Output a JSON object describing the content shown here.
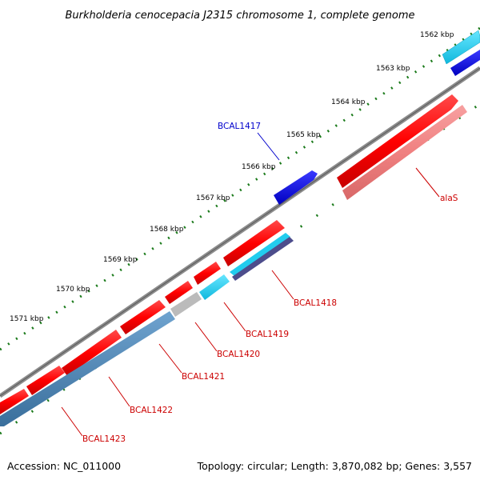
{
  "title": "Burkholderia cenocepacia J2315 chromosome 1, complete genome",
  "footer": {
    "accession": "Accession: NC_011000",
    "stats": "Topology: circular; Length: 3,870,082 bp; Genes: 3,557"
  },
  "ticks": [
    "1562 kbp",
    "1563 kbp",
    "1564 kbp",
    "1565 kbp",
    "1566 kbp",
    "1567 kbp",
    "1568 kbp",
    "1569 kbp",
    "1570 kbp",
    "1571 kbp"
  ],
  "genes": {
    "bcal1417": "BCAL1417",
    "alas": "alaS",
    "bcal1418": "BCAL1418",
    "bcal1419": "BCAL1419",
    "bcal1420": "BCAL1420",
    "bcal1421": "BCAL1421",
    "bcal1422": "BCAL1422",
    "bcal1423": "BCAL1423"
  },
  "colors": {
    "cds": "#ff0000",
    "cds_strand_rna": "#f08080",
    "gene_blue": "#0000dd",
    "gene_cyan": "#22ccee",
    "gene_steel": "#4682b4",
    "gene_gray": "#bbbbbb",
    "backbone": "#7a7a7a",
    "tick": "#1a7a1a"
  }
}
